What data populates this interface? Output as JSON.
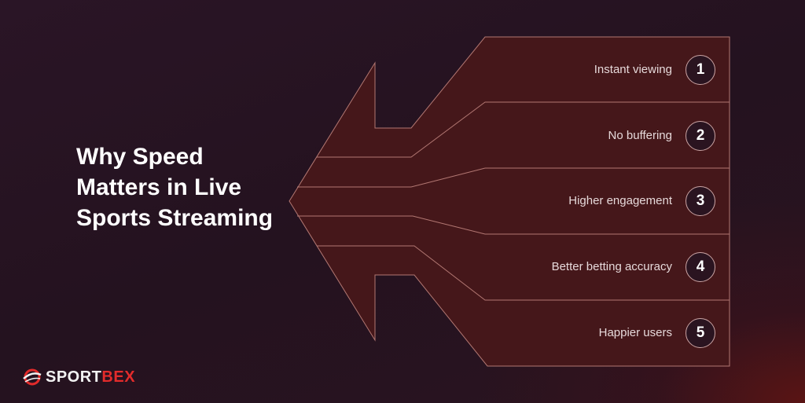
{
  "title": "Why Speed Matters in Live Sports Streaming",
  "items": [
    {
      "number": "1",
      "label": "Instant viewing"
    },
    {
      "number": "2",
      "label": "No buffering"
    },
    {
      "number": "3",
      "label": "Higher engagement"
    },
    {
      "number": "4",
      "label": "Better betting accuracy"
    },
    {
      "number": "5",
      "label": "Happier users"
    }
  ],
  "logo": {
    "part1": "SPORT",
    "part2": "BEX",
    "icon": "globe-swoosh-icon"
  },
  "colors": {
    "fill": "#45171a",
    "line": "#b27772",
    "brand_red": "#e32b2b"
  }
}
